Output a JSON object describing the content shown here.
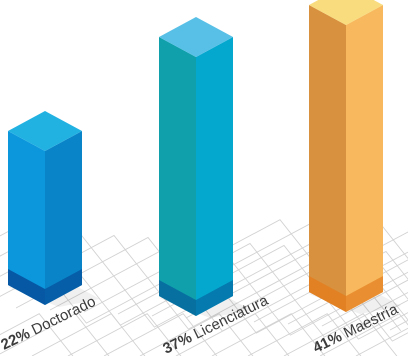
{
  "chart_data": {
    "type": "bar",
    "style": "3d-isometric",
    "categories": [
      "Doctorado",
      "Licenciatura",
      "Maestría"
    ],
    "values": [
      22,
      37,
      41
    ],
    "value_labels": [
      "22%",
      "37%",
      "41%"
    ],
    "title": "",
    "xlabel": "",
    "ylabel": "",
    "ylim": [
      0,
      45
    ],
    "grid": true,
    "legend": "none",
    "colors": {
      "Doctorado": {
        "top": "#22b2e2",
        "left": "#0c96dc",
        "right": "#0a84c8",
        "base": "#064e9a"
      },
      "Licenciatura": {
        "top": "#58c0e6",
        "left": "#10a0ac",
        "right": "#04a8cf",
        "base": "#06679f"
      },
      "Maestría": {
        "top": "#f8dc7e",
        "left": "#d8913f",
        "right": "#f8b95e",
        "base": "#e37e1e"
      }
    },
    "grid_color": "#d2d2d2",
    "text_color": "#3c3c3c"
  }
}
